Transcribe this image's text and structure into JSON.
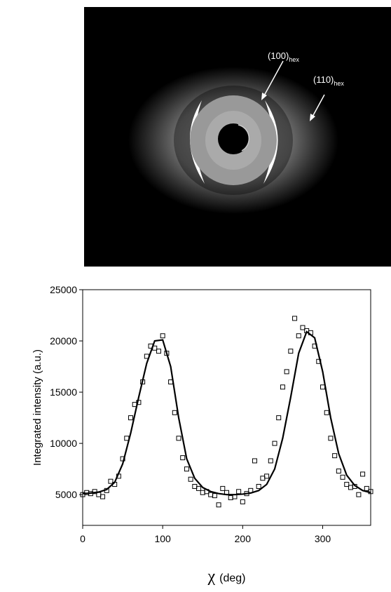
{
  "image": {
    "annotations": [
      {
        "text": "(100)",
        "sub": "hex"
      },
      {
        "text": "(110)",
        "sub": "hex"
      }
    ]
  },
  "chart_data": {
    "type": "scatter",
    "y_label": "Integrated intensity (a.u.)",
    "x_label": {
      "symbol": "χ",
      "unit": "(deg)"
    },
    "xlim": [
      0,
      360
    ],
    "xticks": [
      0,
      100,
      200,
      300
    ],
    "ylim": [
      2000,
      25000
    ],
    "yticks": [
      5000,
      10000,
      15000,
      20000,
      25000
    ],
    "series": [
      {
        "type": "scatter",
        "marker": "square",
        "color": "#000000",
        "x": [
          0,
          5,
          10,
          15,
          20,
          25,
          30,
          35,
          40,
          45,
          50,
          55,
          60,
          65,
          70,
          75,
          80,
          85,
          90,
          95,
          100,
          105,
          110,
          115,
          120,
          125,
          130,
          135,
          140,
          145,
          150,
          155,
          160,
          165,
          170,
          175,
          180,
          185,
          190,
          195,
          200,
          205,
          210,
          215,
          220,
          225,
          230,
          235,
          240,
          245,
          250,
          255,
          260,
          265,
          270,
          275,
          280,
          285,
          290,
          295,
          300,
          305,
          310,
          315,
          320,
          325,
          330,
          335,
          340,
          345,
          350,
          355,
          360
        ],
        "values": [
          5000,
          5200,
          5100,
          5300,
          5000,
          4800,
          5400,
          6300,
          6000,
          6800,
          8500,
          10500,
          12500,
          13800,
          14000,
          16000,
          18500,
          19500,
          19300,
          19000,
          20500,
          18800,
          16000,
          13000,
          10500,
          8600,
          7500,
          6500,
          5800,
          5600,
          5200,
          5300,
          5000,
          4900,
          4000,
          5600,
          5200,
          4700,
          4800,
          5300,
          4300,
          5100,
          5400,
          8300,
          5800,
          6600,
          6800,
          8300,
          10000,
          12500,
          15500,
          17000,
          19000,
          22200,
          20500,
          21300,
          21000,
          20800,
          19500,
          18000,
          15500,
          13000,
          10500,
          8800,
          7300,
          6700,
          6000,
          5700,
          5800,
          5000,
          7000,
          5600,
          5300
        ]
      },
      {
        "type": "line",
        "color": "#000000",
        "x": [
          0,
          10,
          20,
          30,
          40,
          50,
          60,
          70,
          80,
          90,
          100,
          110,
          120,
          130,
          140,
          150,
          160,
          170,
          180,
          190,
          200,
          210,
          220,
          230,
          240,
          250,
          260,
          270,
          280,
          290,
          300,
          310,
          320,
          330,
          340,
          350,
          360
        ],
        "values": [
          5100,
          5150,
          5250,
          5500,
          6200,
          8000,
          11000,
          14500,
          17800,
          20000,
          20100,
          17500,
          12500,
          8500,
          6600,
          5700,
          5300,
          5100,
          5000,
          5000,
          5050,
          5150,
          5400,
          6000,
          7500,
          10500,
          14500,
          18800,
          20900,
          20300,
          17000,
          12500,
          9000,
          6900,
          5900,
          5400,
          5200
        ]
      }
    ]
  }
}
